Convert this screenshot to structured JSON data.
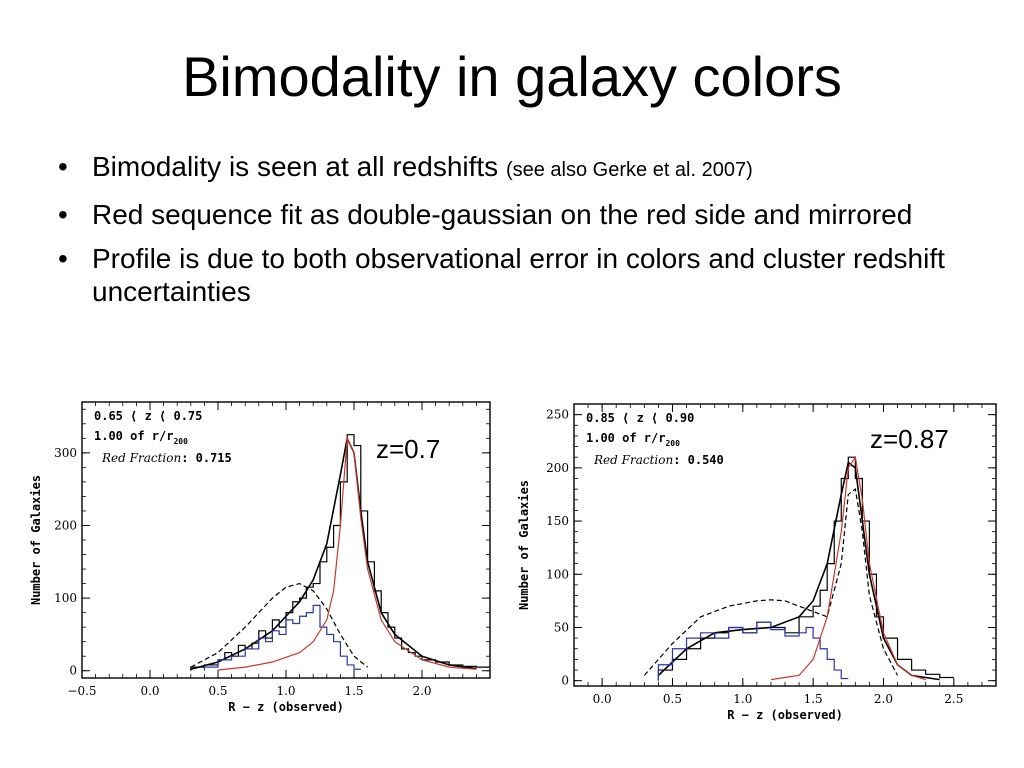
{
  "slide": {
    "title": "Bimodality in galaxy colors",
    "bullets": [
      {
        "text": "Bimodality is seen at all redshifts ",
        "note": "(see also Gerke et al. 2007)"
      },
      {
        "text": "Red sequence fit as double-gaussian on the red side and mirrored",
        "note": ""
      },
      {
        "text": "Profile is due to both observational error in colors and cluster redshift uncertainties",
        "note": ""
      }
    ],
    "bullet_glyph": "•"
  },
  "chart_data": [
    {
      "type": "line",
      "panel_label": "z=0.7",
      "info": {
        "line1": "0.65 ⟨ z ⟨ 0.75",
        "line2_pre": "1.00 of r/r",
        "line2_sub": "200",
        "line3_label": "Red Fraction",
        "line3_value": ": 0.715"
      },
      "xlabel": "R − z (observed)",
      "ylabel": "Number of Galaxies",
      "xlim": [
        -0.5,
        2.5
      ],
      "ylim": [
        -10,
        370
      ],
      "xticks": [
        -0.5,
        0.0,
        0.5,
        1.0,
        1.5,
        2.0
      ],
      "xtick_labels": [
        "−0.5",
        "0.0",
        "0.5",
        "1.0",
        "1.5",
        "2.0"
      ],
      "yticks": [
        0,
        100,
        200,
        300
      ],
      "ytick_labels": [
        "0",
        "100",
        "200",
        "300"
      ],
      "series": [
        {
          "role": "total_histogram",
          "color": "#000000",
          "style": "steps",
          "x": [
            0.3,
            0.4,
            0.5,
            0.55,
            0.6,
            0.65,
            0.7,
            0.75,
            0.8,
            0.85,
            0.9,
            0.95,
            1.0,
            1.05,
            1.1,
            1.15,
            1.2,
            1.25,
            1.3,
            1.35,
            1.4,
            1.45,
            1.5,
            1.55,
            1.6,
            1.65,
            1.7,
            1.75,
            1.8,
            1.85,
            1.9,
            1.95,
            2.0,
            2.1,
            2.2,
            2.3,
            2.4
          ],
          "y": [
            5,
            8,
            15,
            25,
            20,
            35,
            30,
            38,
            55,
            45,
            70,
            60,
            80,
            95,
            100,
            115,
            120,
            150,
            170,
            200,
            260,
            325,
            310,
            220,
            150,
            110,
            80,
            60,
            45,
            30,
            25,
            20,
            15,
            12,
            8,
            6,
            5
          ]
        },
        {
          "role": "total_fit",
          "color": "#000000",
          "style": "solid",
          "x": [
            0.3,
            0.5,
            0.7,
            0.9,
            1.0,
            1.1,
            1.2,
            1.3,
            1.4,
            1.45,
            1.5,
            1.55,
            1.6,
            1.7,
            1.8,
            2.0,
            2.2,
            2.4
          ],
          "y": [
            2,
            12,
            30,
            55,
            75,
            95,
            125,
            175,
            270,
            320,
            300,
            220,
            150,
            80,
            50,
            20,
            8,
            3
          ]
        },
        {
          "role": "blue_model",
          "color": "#000000",
          "style": "dashed",
          "x": [
            0.3,
            0.5,
            0.7,
            0.9,
            1.0,
            1.1,
            1.2,
            1.3,
            1.4,
            1.5,
            1.6
          ],
          "y": [
            5,
            25,
            60,
            100,
            115,
            120,
            110,
            85,
            50,
            20,
            5
          ]
        },
        {
          "role": "blue_histogram",
          "color": "#2b35a8",
          "style": "steps",
          "x": [
            0.4,
            0.5,
            0.6,
            0.7,
            0.8,
            0.85,
            0.9,
            0.95,
            1.0,
            1.05,
            1.1,
            1.15,
            1.2,
            1.25,
            1.3,
            1.35,
            1.4,
            1.45,
            1.5
          ],
          "y": [
            5,
            15,
            20,
            30,
            45,
            40,
            55,
            50,
            70,
            65,
            75,
            80,
            90,
            60,
            50,
            40,
            20,
            8,
            2
          ]
        },
        {
          "role": "red_fit",
          "color": "#c83a2e",
          "style": "solid",
          "x": [
            0.5,
            0.7,
            0.9,
            1.1,
            1.2,
            1.3,
            1.35,
            1.4,
            1.45,
            1.5,
            1.55,
            1.6,
            1.7,
            1.8,
            2.0,
            2.2,
            2.4
          ],
          "y": [
            1,
            5,
            12,
            25,
            40,
            70,
            110,
            200,
            320,
            300,
            210,
            140,
            70,
            40,
            15,
            5,
            2
          ]
        }
      ]
    },
    {
      "type": "line",
      "panel_label": "z=0.87",
      "info": {
        "line1": "0.85 ⟨ z ⟨ 0.90",
        "line2_pre": "1.00 of r/r",
        "line2_sub": "200",
        "line3_label": "Red Fraction",
        "line3_value": ": 0.540"
      },
      "xlabel": "R − z (observed)",
      "ylabel": "Number of Galaxies",
      "xlim": [
        -0.2,
        2.8
      ],
      "ylim": [
        -5,
        260
      ],
      "xticks": [
        0.0,
        0.5,
        1.0,
        1.5,
        2.0,
        2.5
      ],
      "xtick_labels": [
        "0.0",
        "0.5",
        "1.0",
        "1.5",
        "2.0",
        "2.5"
      ],
      "yticks": [
        0,
        50,
        100,
        150,
        200,
        250
      ],
      "ytick_labels": [
        "0",
        "50",
        "100",
        "150",
        "200",
        "250"
      ],
      "series": [
        {
          "role": "total_histogram",
          "color": "#000000",
          "style": "steps",
          "x": [
            0.4,
            0.5,
            0.6,
            0.7,
            0.8,
            0.9,
            1.0,
            1.1,
            1.2,
            1.3,
            1.4,
            1.5,
            1.55,
            1.6,
            1.65,
            1.7,
            1.75,
            1.8,
            1.85,
            1.9,
            1.95,
            2.0,
            2.1,
            2.2,
            2.3,
            2.4
          ],
          "y": [
            10,
            20,
            30,
            40,
            45,
            50,
            45,
            55,
            50,
            45,
            60,
            70,
            85,
            110,
            150,
            190,
            210,
            190,
            150,
            100,
            60,
            40,
            20,
            10,
            6,
            3
          ]
        },
        {
          "role": "total_fit",
          "color": "#000000",
          "style": "solid",
          "x": [
            0.4,
            0.6,
            0.8,
            1.0,
            1.2,
            1.4,
            1.5,
            1.6,
            1.7,
            1.75,
            1.8,
            1.85,
            1.9,
            2.0,
            2.1,
            2.2,
            2.4
          ],
          "y": [
            5,
            30,
            45,
            48,
            50,
            60,
            75,
            110,
            175,
            205,
            200,
            150,
            100,
            40,
            15,
            5,
            1
          ]
        },
        {
          "role": "blue_model",
          "color": "#000000",
          "style": "dashed",
          "x": [
            0.3,
            0.5,
            0.7,
            0.9,
            1.1,
            1.2,
            1.3,
            1.5,
            1.6,
            1.7,
            1.75,
            1.8,
            1.85,
            1.9,
            2.0,
            2.1
          ],
          "y": [
            5,
            35,
            60,
            70,
            75,
            76,
            75,
            65,
            60,
            110,
            175,
            180,
            140,
            80,
            30,
            5
          ]
        },
        {
          "role": "blue_histogram",
          "color": "#2b35a8",
          "style": "steps",
          "x": [
            0.4,
            0.5,
            0.6,
            0.7,
            0.8,
            0.9,
            1.0,
            1.1,
            1.2,
            1.3,
            1.4,
            1.45,
            1.5,
            1.55,
            1.6,
            1.65,
            1.7
          ],
          "y": [
            15,
            30,
            40,
            45,
            40,
            50,
            45,
            55,
            48,
            42,
            45,
            50,
            40,
            30,
            20,
            10,
            2
          ]
        },
        {
          "role": "red_fit",
          "color": "#c83a2e",
          "style": "solid",
          "x": [
            1.2,
            1.4,
            1.5,
            1.6,
            1.7,
            1.75,
            1.8,
            1.85,
            1.9,
            2.0,
            2.1,
            2.2,
            2.3
          ],
          "y": [
            1,
            5,
            20,
            60,
            140,
            200,
            210,
            170,
            110,
            45,
            15,
            5,
            1
          ]
        }
      ]
    }
  ]
}
